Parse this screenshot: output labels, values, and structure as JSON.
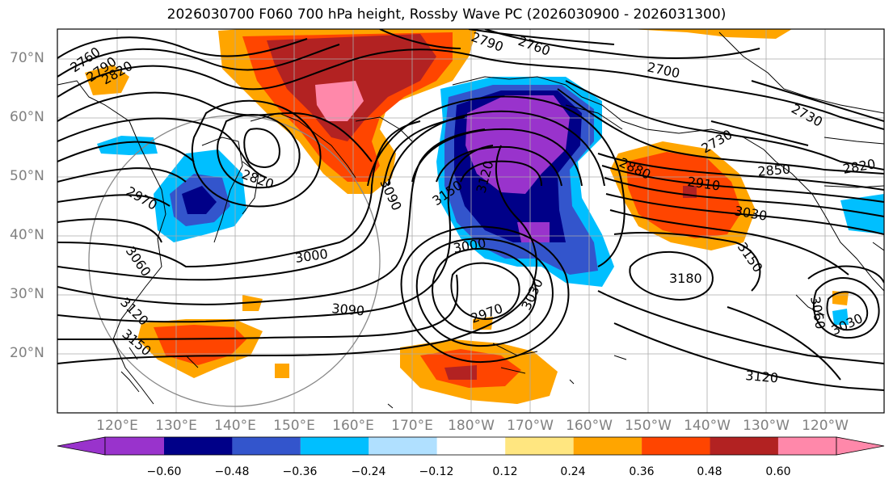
{
  "title": "2026030700 F060 700 hPa height, Rossby Wave PC (2026030900 - 2026031300)",
  "lat_labels": [
    "70°N",
    "60°N",
    "50°N",
    "40°N",
    "30°N",
    "20°N"
  ],
  "lon_labels": [
    "120°E",
    "130°E",
    "140°E",
    "150°E",
    "160°E",
    "170°E",
    "180°W",
    "170°W",
    "160°W",
    "150°W",
    "140°W",
    "130°W",
    "120°W"
  ],
  "contour_labels": [
    "2760",
    "2790",
    "2820",
    "2790",
    "2760",
    "2700",
    "2730",
    "2730",
    "2820",
    "2970",
    "3060",
    "3120",
    "3150",
    "3000",
    "3090",
    "3090",
    "3150",
    "3120",
    "3000",
    "2970",
    "3030",
    "2880",
    "2910",
    "2850",
    "3030",
    "3150",
    "3180",
    "3060",
    "3030",
    "3120",
    "2820"
  ],
  "colorbar": {
    "ticks": [
      "−0.60",
      "−0.48",
      "−0.36",
      "−0.24",
      "−0.12",
      "0.12",
      "0.24",
      "0.36",
      "0.48",
      "0.60"
    ],
    "colors": [
      "#9933cc",
      "#000088",
      "#3355cc",
      "#00bfff",
      "#b0e0ff",
      "#ffffff",
      "#ffe680",
      "#ffa500",
      "#ff4500",
      "#b22222",
      "#ff88aa"
    ]
  },
  "colors": {
    "neg_extreme": "#9933cc",
    "neg_strong": "#000088",
    "neg_mid": "#3355cc",
    "neg_weak": "#00bfff",
    "pos_weak": "#ffe680",
    "pos_mid": "#ffa500",
    "pos_strong": "#ff4500",
    "pos_very": "#b22222",
    "pos_extreme": "#ff88aa"
  }
}
